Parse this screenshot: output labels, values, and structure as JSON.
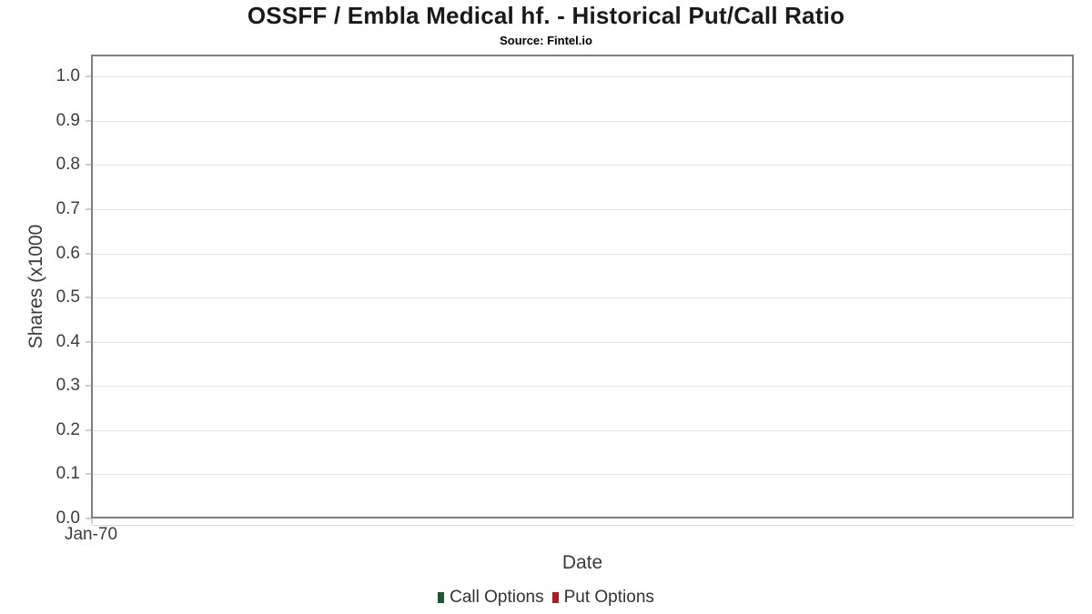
{
  "header": {
    "title": "OSSFF / Embla Medical hf. - Historical Put/Call Ratio",
    "subtitle": "Source: Fintel.io"
  },
  "chart_data": {
    "type": "line",
    "title": "OSSFF / Embla Medical hf. - Historical Put/Call Ratio",
    "subtitle": "Source: Fintel.io",
    "xlabel": "Date",
    "ylabel": "Shares (x1000",
    "x_ticks": [
      "Jan-70"
    ],
    "y_ticks": [
      {
        "label": "0.0",
        "value": 0.0
      },
      {
        "label": "0.1",
        "value": 0.1
      },
      {
        "label": "0.2",
        "value": 0.2
      },
      {
        "label": "0.3",
        "value": 0.3
      },
      {
        "label": "0.4",
        "value": 0.4
      },
      {
        "label": "0.5",
        "value": 0.5
      },
      {
        "label": "0.6",
        "value": 0.6
      },
      {
        "label": "0.7",
        "value": 0.7
      },
      {
        "label": "0.8",
        "value": 0.8
      },
      {
        "label": "0.9",
        "value": 0.9
      },
      {
        "label": "1.0",
        "value": 1.0
      }
    ],
    "ylim": [
      0,
      1.05
    ],
    "grid": "horizontal",
    "legend_position": "bottom",
    "series": [
      {
        "name": "Call Options",
        "color": "#1e5634",
        "x": [],
        "values": []
      },
      {
        "name": "Put Options",
        "color": "#ad1d1d",
        "x": [],
        "values": []
      }
    ],
    "colors": {
      "plot_border": "#7f7f7f",
      "gridline": "#e4e4e4",
      "tick_mark": "#cfcfcf",
      "title_text": "#1a1a1a",
      "axis_text": "#3d3d3d"
    }
  }
}
